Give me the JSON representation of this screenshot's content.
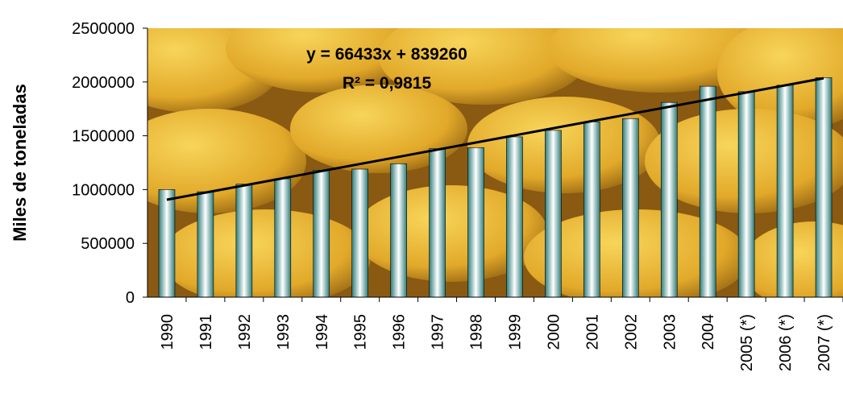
{
  "chart_data": {
    "type": "bar",
    "y_label": "Miles de toneladas",
    "categories": [
      "1990",
      "1991",
      "1992",
      "1993",
      "1994",
      "1995",
      "1996",
      "1997",
      "1998",
      "1999",
      "2000",
      "2001",
      "2002",
      "2003",
      "2004",
      "2005 (*)",
      "2006 (*)",
      "2007 (*)"
    ],
    "values": [
      1000000,
      980000,
      1050000,
      1100000,
      1180000,
      1190000,
      1240000,
      1380000,
      1390000,
      1490000,
      1550000,
      1630000,
      1660000,
      1810000,
      1960000,
      1910000,
      1970000,
      2040000
    ],
    "color": "#2e7d7b",
    "ylim": [
      0,
      2500000
    ],
    "yticks": [
      0,
      500000,
      1000000,
      1500000,
      2000000,
      2500000
    ],
    "trendline": {
      "slope": 66433,
      "intercept": 839260,
      "color": "#000000",
      "equation": "y = 66433x + 839260",
      "r2": "R² = 0,9815"
    }
  }
}
